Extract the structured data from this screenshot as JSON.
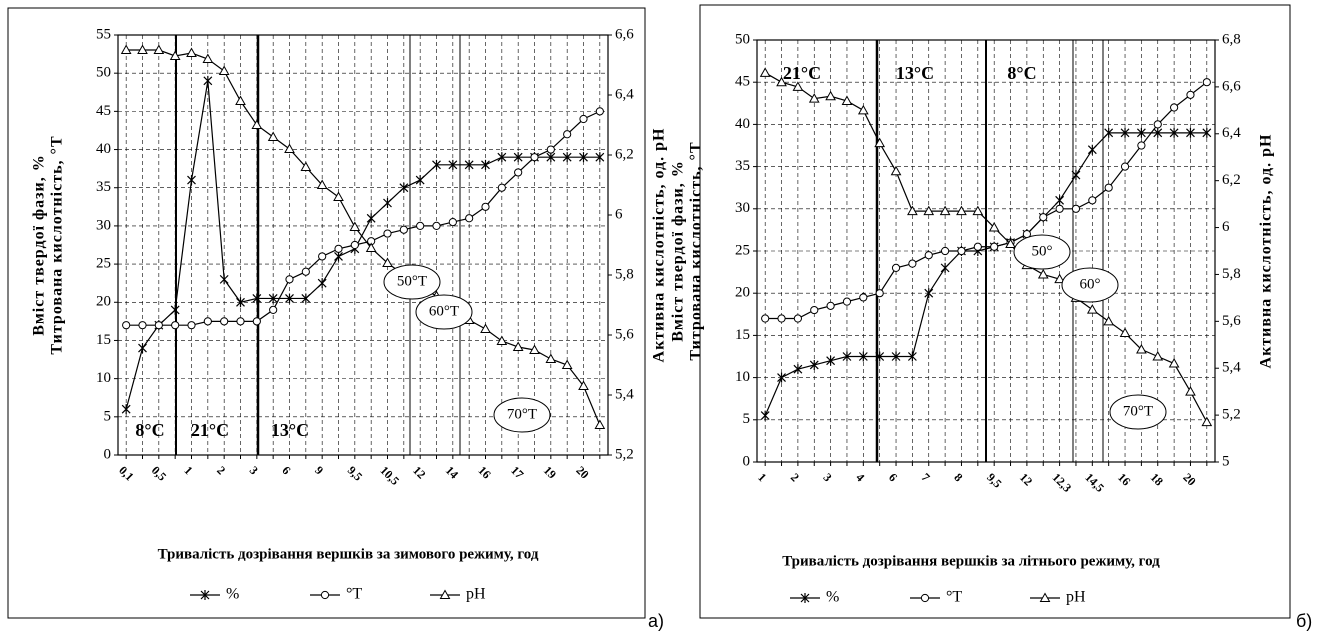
{
  "chart_data": [
    {
      "type": "line",
      "panel": "а)",
      "x_label": "Тривалість дозрівання вершків за зимового режиму, год",
      "y_label": [
        "Вміст твердої фази, %",
        "Титрована кислотність, °Т"
      ],
      "y2_label": "Активна кислотність, од. рН",
      "categories": [
        "0,1",
        null,
        "0,5",
        null,
        "1",
        null,
        "2",
        null,
        "3",
        null,
        "6",
        null,
        "9",
        null,
        "9,5",
        null,
        "10,5",
        null,
        "12",
        null,
        "14",
        null,
        "16",
        null,
        "17",
        null,
        "19",
        null,
        "20",
        null
      ],
      "series": [
        {
          "name": "%",
          "color": "#000000",
          "marker": "star",
          "values": [
            6,
            14,
            17,
            19,
            36,
            49,
            23,
            20,
            20.5,
            20.5,
            20.5,
            20.5,
            22.5,
            26,
            27,
            31,
            33,
            35,
            36,
            38,
            38,
            38,
            38,
            39,
            39,
            39,
            39,
            39,
            39,
            39
          ]
        },
        {
          "name": "°Т",
          "color": "#000000",
          "marker": "circle",
          "values": [
            17,
            17,
            17,
            17,
            17,
            17.5,
            17.5,
            17.5,
            17.5,
            19,
            23,
            24,
            26,
            27,
            27.5,
            28,
            29,
            29.5,
            30,
            30,
            30.5,
            31,
            32.5,
            35,
            37,
            39,
            40,
            42,
            44,
            45
          ]
        },
        {
          "name": "pH",
          "color": "#000000",
          "marker": "triangle",
          "axis": "y2",
          "values": [
            6.55,
            6.55,
            6.55,
            6.53,
            6.54,
            6.52,
            6.48,
            6.38,
            6.3,
            6.26,
            6.22,
            6.16,
            6.1,
            6.06,
            5.96,
            5.89,
            5.84,
            5.8,
            5.76,
            5.73,
            5.68,
            5.65,
            5.62,
            5.58,
            5.56,
            5.55,
            5.52,
            5.5,
            5.43,
            5.3
          ]
        }
      ],
      "ylim": [
        0,
        55
      ],
      "yticks": [
        0,
        5,
        10,
        15,
        20,
        25,
        30,
        35,
        40,
        45,
        50,
        55
      ],
      "y2lim": [
        5.2,
        6.6
      ],
      "y2ticks": [
        {
          "value": 5.2,
          "label": "5,2"
        },
        {
          "value": 5.4,
          "label": "5,4"
        },
        {
          "value": 5.6,
          "label": "5,6"
        },
        {
          "value": 5.8,
          "label": "5,8"
        },
        {
          "value": 6,
          "label": "6"
        },
        {
          "value": 6.2,
          "label": "6,2"
        },
        {
          "value": 6.4,
          "label": "6,4"
        },
        {
          "value": 6.6,
          "label": "6,6"
        }
      ],
      "grid": true,
      "annotations": [
        "8°C",
        "21°C",
        "13°C",
        "50°Т",
        "60°Т",
        "70°Т"
      ]
    },
    {
      "type": "line",
      "panel": "б)",
      "x_label": "Тривалість дозрівання вершків за літнього режиму, год",
      "y_label": [
        "Вміст твердої фази, %",
        "Титрована кислотність, °Т"
      ],
      "y2_label": "Активна кислотність, од. рН",
      "categories": [
        "1",
        null,
        "2",
        null,
        "3",
        null,
        "4",
        null,
        "6",
        null,
        "7",
        null,
        "8",
        null,
        "9,5",
        null,
        "12",
        null,
        "12,3",
        null,
        "14,5",
        null,
        "16",
        null,
        "18",
        null,
        "20",
        null
      ],
      "series": [
        {
          "name": "%",
          "color": "#000000",
          "marker": "star",
          "values": [
            5.5,
            10,
            11,
            11.5,
            12,
            12.5,
            12.5,
            12.5,
            12.5,
            12.5,
            20,
            23,
            25,
            25,
            25.5,
            26,
            27,
            29,
            31,
            34,
            37,
            39,
            39,
            39,
            39,
            39,
            39,
            39
          ]
        },
        {
          "name": "°Т",
          "color": "#000000",
          "marker": "circle",
          "values": [
            17,
            17,
            17,
            18,
            18.5,
            19,
            19.5,
            20,
            23,
            23.5,
            24.5,
            25,
            25,
            25.5,
            25.5,
            26,
            27,
            29,
            30,
            30,
            31,
            32.5,
            35,
            37.5,
            40,
            42,
            43.5,
            45
          ]
        },
        {
          "name": "pH",
          "color": "#000000",
          "marker": "triangle",
          "axis": "y2",
          "values": [
            6.66,
            6.62,
            6.6,
            6.55,
            6.56,
            6.54,
            6.5,
            6.36,
            6.24,
            6.07,
            6.07,
            6.07,
            6.07,
            6.07,
            6.0,
            5.93,
            5.84,
            5.8,
            5.78,
            5.7,
            5.65,
            5.6,
            5.55,
            5.48,
            5.45,
            5.42,
            5.3,
            5.17
          ]
        }
      ],
      "ylim": [
        0,
        50
      ],
      "yticks": [
        0,
        5,
        10,
        15,
        20,
        25,
        30,
        35,
        40,
        45,
        50
      ],
      "y2lim": [
        5,
        6.8
      ],
      "y2ticks": [
        5,
        {
          "value": 5.2,
          "label": "5,2"
        },
        {
          "value": 5.4,
          "label": "5,4"
        },
        {
          "value": 5.6,
          "label": "5,6"
        },
        {
          "value": 5.8,
          "label": "5,8"
        },
        {
          "value": 6,
          "label": "6"
        },
        {
          "value": 6.2,
          "label": "6,2"
        },
        {
          "value": 6.4,
          "label": "6,4"
        },
        {
          "value": 6.6,
          "label": "6,6"
        },
        {
          "value": 6.8,
          "label": "6,8"
        }
      ],
      "grid": true,
      "annotations": [
        "21°C",
        "13°C",
        "8°C",
        "50°",
        "60°",
        "70°Т"
      ]
    }
  ]
}
